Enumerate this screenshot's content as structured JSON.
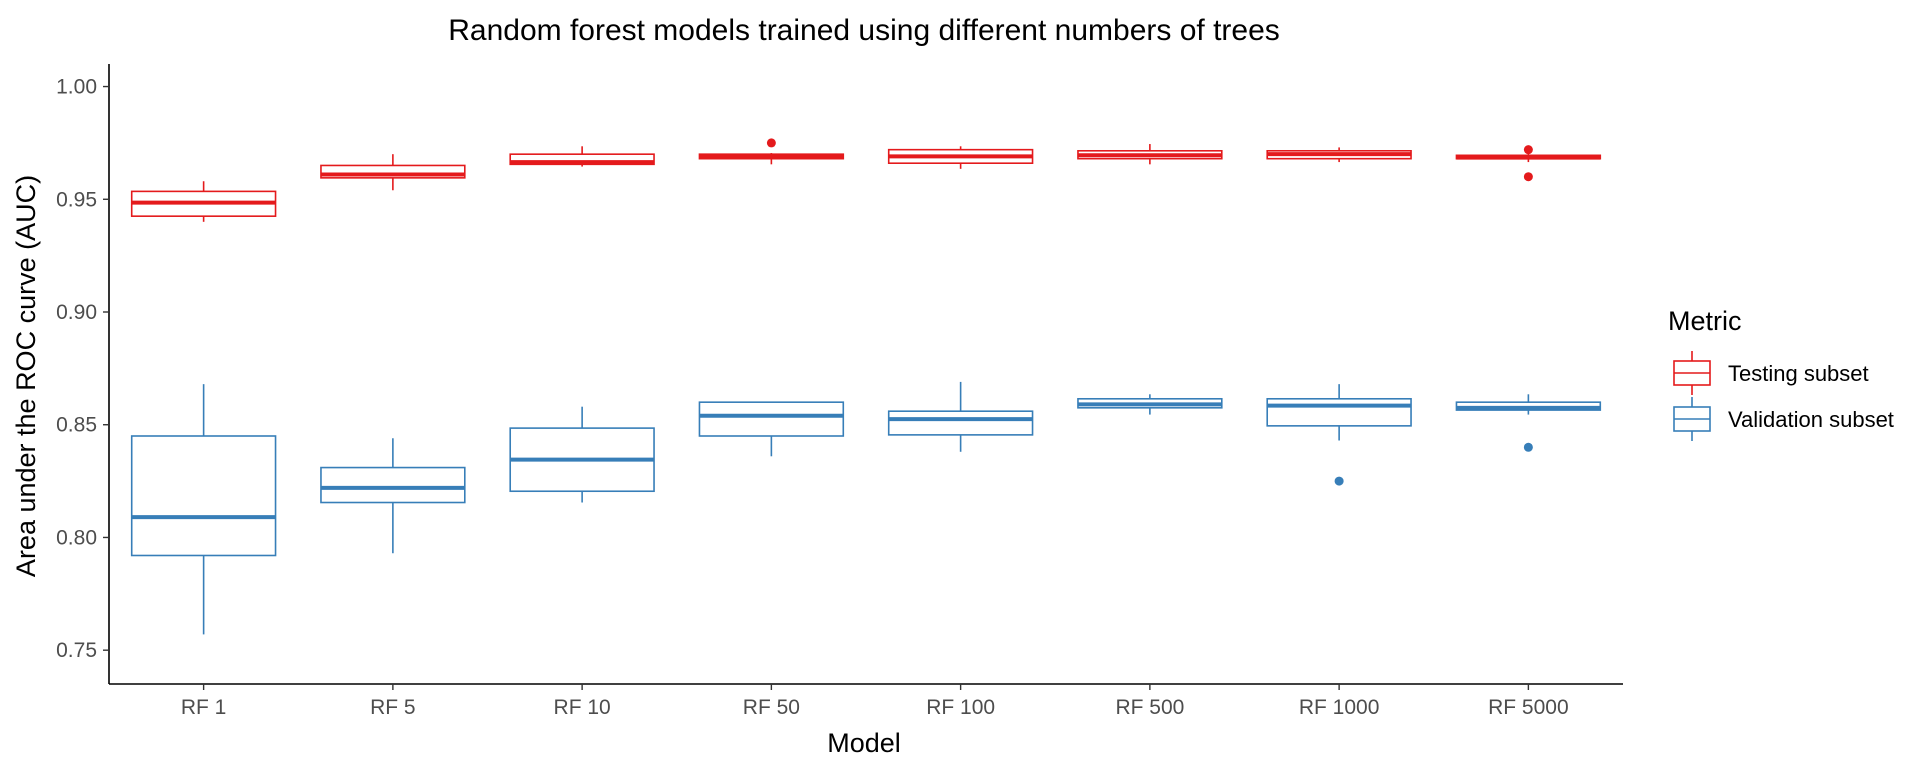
{
  "chart_data": {
    "type": "boxplot",
    "title": "Random forest models trained using different numbers of trees",
    "xlabel": "Model",
    "ylabel": "Area under the ROC curve (AUC)",
    "ylim": [
      0.735,
      1.01
    ],
    "yticks": [
      "0.75",
      "0.80",
      "0.85",
      "0.90",
      "0.95",
      "1.00"
    ],
    "categories": [
      "RF 1",
      "RF 5",
      "RF 10",
      "RF 50",
      "RF 100",
      "RF 500",
      "RF 1000",
      "RF 5000"
    ],
    "grid": false,
    "legend": {
      "title": "Metric",
      "placement": "right"
    },
    "series": [
      {
        "name": "Testing subset",
        "color": "#e41a1c",
        "boxes": [
          {
            "min": 0.94,
            "q1": 0.9425,
            "median": 0.9485,
            "q3": 0.9535,
            "max": 0.958,
            "outliers": []
          },
          {
            "min": 0.954,
            "q1": 0.9595,
            "median": 0.961,
            "q3": 0.965,
            "max": 0.97,
            "outliers": []
          },
          {
            "min": 0.9645,
            "q1": 0.9655,
            "median": 0.9665,
            "q3": 0.97,
            "max": 0.9735,
            "outliers": []
          },
          {
            "min": 0.9655,
            "q1": 0.968,
            "median": 0.969,
            "q3": 0.97,
            "max": 0.9705,
            "outliers": [
              0.975
            ]
          },
          {
            "min": 0.9635,
            "q1": 0.966,
            "median": 0.969,
            "q3": 0.972,
            "max": 0.9735,
            "outliers": []
          },
          {
            "min": 0.9655,
            "q1": 0.968,
            "median": 0.9695,
            "q3": 0.9715,
            "max": 0.9745,
            "outliers": []
          },
          {
            "min": 0.9665,
            "q1": 0.968,
            "median": 0.97,
            "q3": 0.9715,
            "max": 0.973,
            "outliers": []
          },
          {
            "min": 0.9665,
            "q1": 0.968,
            "median": 0.9685,
            "q3": 0.9695,
            "max": 0.9705,
            "outliers": [
              0.972,
              0.96
            ]
          }
        ]
      },
      {
        "name": "Validation subset",
        "color": "#377eb8",
        "boxes": [
          {
            "min": 0.757,
            "q1": 0.792,
            "median": 0.809,
            "q3": 0.845,
            "max": 0.868,
            "outliers": []
          },
          {
            "min": 0.793,
            "q1": 0.8155,
            "median": 0.822,
            "q3": 0.831,
            "max": 0.844,
            "outliers": []
          },
          {
            "min": 0.8155,
            "q1": 0.8205,
            "median": 0.8345,
            "q3": 0.8485,
            "max": 0.858,
            "outliers": []
          },
          {
            "min": 0.836,
            "q1": 0.845,
            "median": 0.854,
            "q3": 0.86,
            "max": 0.86,
            "outliers": []
          },
          {
            "min": 0.838,
            "q1": 0.8455,
            "median": 0.8525,
            "q3": 0.856,
            "max": 0.869,
            "outliers": []
          },
          {
            "min": 0.8545,
            "q1": 0.8575,
            "median": 0.859,
            "q3": 0.8615,
            "max": 0.8635,
            "outliers": []
          },
          {
            "min": 0.843,
            "q1": 0.8495,
            "median": 0.8585,
            "q3": 0.8615,
            "max": 0.868,
            "outliers": [
              0.825
            ]
          },
          {
            "min": 0.8545,
            "q1": 0.8565,
            "median": 0.8575,
            "q3": 0.86,
            "max": 0.8635,
            "outliers": [
              0.84
            ]
          }
        ]
      }
    ]
  }
}
